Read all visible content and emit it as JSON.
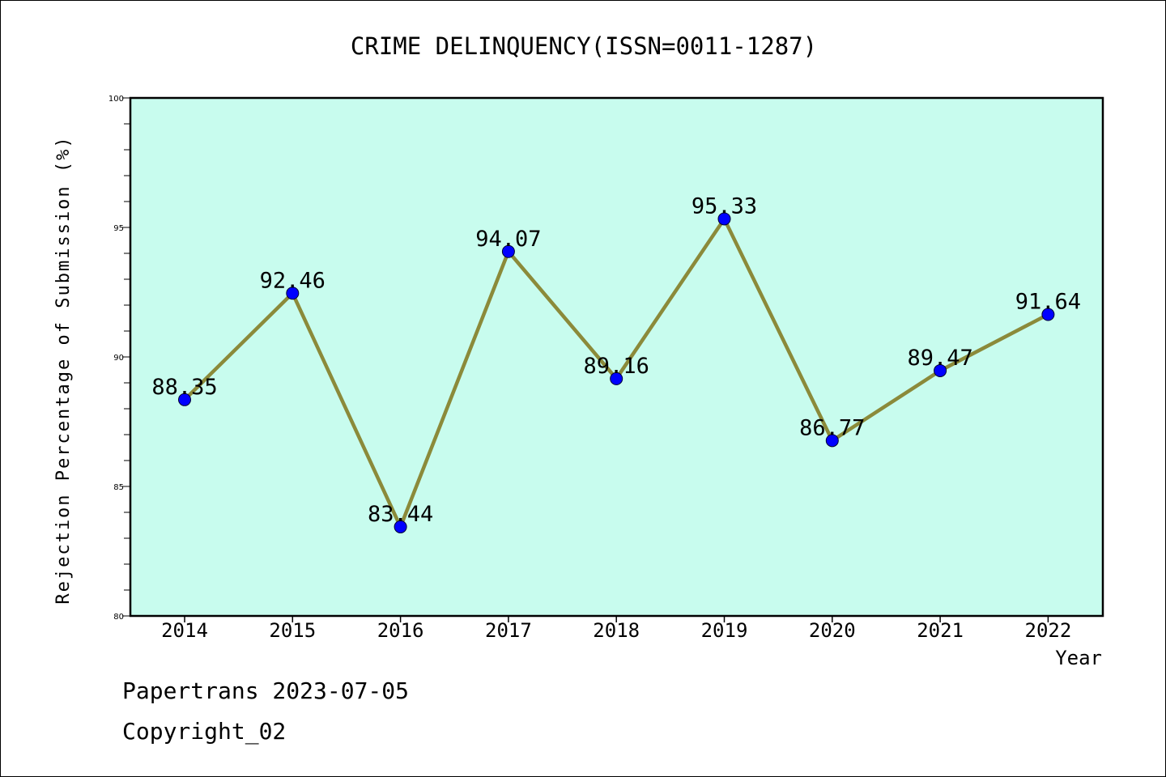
{
  "chart_data": {
    "type": "line",
    "title": "CRIME DELINQUENCY(ISSN=0011-1287)",
    "xlabel": "Year",
    "ylabel": "Rejection Percentage of Submission (%)",
    "categories": [
      "2014",
      "2015",
      "2016",
      "2017",
      "2018",
      "2019",
      "2020",
      "2021",
      "2022"
    ],
    "values": [
      88.35,
      92.46,
      83.44,
      94.07,
      89.16,
      95.33,
      86.77,
      89.47,
      91.64
    ],
    "data_labels": [
      "88.35",
      "92.46",
      "83.44",
      "94.07",
      "89.16",
      "95.33",
      "86.77",
      "89.47",
      "91.64"
    ],
    "ylim": [
      80,
      100
    ],
    "y_ticks": [
      "80",
      "85",
      "90",
      "95",
      "100"
    ],
    "grid": false,
    "legend": "none"
  },
  "colors": {
    "plot_background": "#c8fcee",
    "line": "#8b8a3a",
    "marker": "#0000ff"
  },
  "footer": {
    "line1": "Papertrans 2023-07-05",
    "line2": "Copyright_02"
  }
}
